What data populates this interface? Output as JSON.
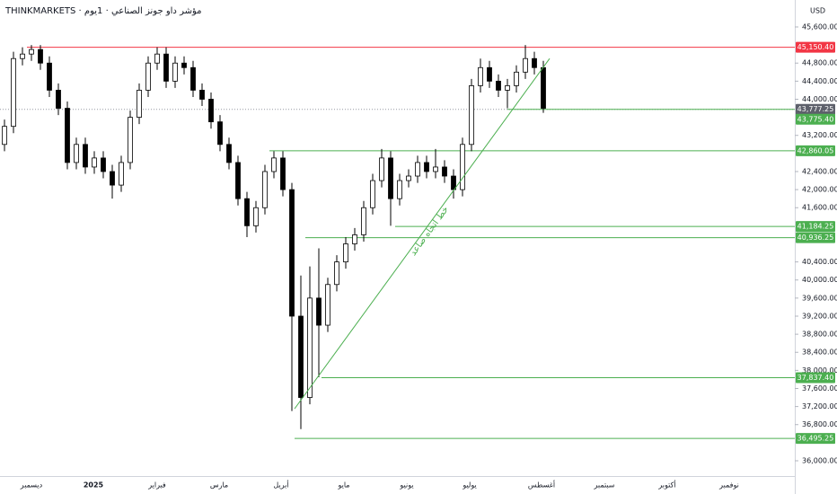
{
  "chart_data": {
    "type": "candlestick",
    "title": "THINKMARKETS · مؤشر داو جونز الصناعي · 1يوم",
    "currency": "USD",
    "x_labels": [
      "ديسمبر",
      "2025",
      "فبراير",
      "مارس",
      "أبريل",
      "مايو",
      "يونيو",
      "يوليو",
      "أغسطس",
      "سبتمبر",
      "أكتوبر",
      "نوفمبر"
    ],
    "open": [
      43000,
      43400,
      44900,
      45000,
      45100,
      44800,
      44200,
      43800,
      42600,
      43000,
      42500,
      42700,
      42400,
      42100,
      42600,
      43600,
      44200,
      44800,
      45000,
      44400,
      44800,
      44700,
      44200,
      44000,
      43500,
      43000,
      42600,
      41800,
      41200,
      41600,
      42400,
      42700,
      42000,
      39200,
      37400,
      39600,
      39000,
      39900,
      40400,
      40800,
      41000,
      41600,
      42200,
      42700,
      41800,
      42200,
      42300,
      42600,
      42400,
      42500,
      42300,
      42000,
      43000,
      44300,
      44700,
      44400,
      44200,
      44300,
      44600,
      44900,
      44700
    ],
    "high": [
      43550,
      45050,
      45150,
      45200,
      45200,
      44950,
      44350,
      43950,
      43150,
      43150,
      42850,
      42850,
      42550,
      42750,
      43750,
      44350,
      44950,
      45150,
      45150,
      44950,
      44950,
      44850,
      44350,
      44150,
      43650,
      43150,
      42750,
      41950,
      41750,
      42550,
      42850,
      42850,
      42150,
      40100,
      40300,
      40700,
      40050,
      40550,
      40950,
      41150,
      41750,
      42350,
      42900,
      42850,
      42350,
      42450,
      42750,
      42750,
      42900,
      42650,
      42450,
      43150,
      44450,
      44900,
      44850,
      44550,
      44450,
      44750,
      45200,
      45050,
      44850
    ],
    "low": [
      42850,
      43250,
      44750,
      44850,
      44650,
      44050,
      43650,
      42450,
      42450,
      42350,
      42350,
      42250,
      41800,
      41950,
      42450,
      43450,
      44050,
      44650,
      44250,
      44250,
      44550,
      44050,
      43850,
      43350,
      42850,
      42450,
      41650,
      40950,
      41050,
      41450,
      42250,
      41850,
      37100,
      36700,
      37250,
      37850,
      38850,
      39750,
      40250,
      40650,
      40850,
      41450,
      42050,
      41200,
      41650,
      42050,
      42150,
      42250,
      42250,
      42150,
      41800,
      41850,
      42850,
      44150,
      44250,
      44050,
      43800,
      44150,
      44450,
      44550,
      43700
    ],
    "close": [
      43400,
      44900,
      45000,
      45100,
      44800,
      44200,
      43800,
      42600,
      43000,
      42500,
      42700,
      42400,
      42100,
      42600,
      43600,
      44200,
      44800,
      45000,
      44400,
      44800,
      44700,
      44200,
      44000,
      43500,
      43000,
      42600,
      41800,
      41200,
      41600,
      42400,
      42700,
      42000,
      39200,
      37400,
      39600,
      39000,
      39900,
      40400,
      40800,
      41000,
      41600,
      42200,
      42700,
      41800,
      42200,
      42300,
      42600,
      42400,
      42500,
      42300,
      42000,
      43000,
      44300,
      44700,
      44400,
      44200,
      44300,
      44600,
      44900,
      44700,
      43800
    ],
    "ylim": [
      35662,
      46196
    ],
    "yticks": [
      {
        "value": 45600,
        "label": "45,600.00"
      },
      {
        "value": 44800,
        "label": "44,800.00"
      },
      {
        "value": 44400,
        "label": "44,400.00"
      },
      {
        "value": 44000,
        "label": "44,000.00"
      },
      {
        "value": 43200,
        "label": "43,200.00"
      },
      {
        "value": 42400,
        "label": "42,400.00"
      },
      {
        "value": 42000,
        "label": "42,000.00"
      },
      {
        "value": 41600,
        "label": "41,600.00"
      },
      {
        "value": 40400,
        "label": "40,400.00"
      },
      {
        "value": 40000,
        "label": "40,000.00"
      },
      {
        "value": 39600,
        "label": "39,600.00"
      },
      {
        "value": 39200,
        "label": "39,200.00"
      },
      {
        "value": 38800,
        "label": "38,800.00"
      },
      {
        "value": 38400,
        "label": "38,400.00"
      },
      {
        "value": 38000,
        "label": "38,000.00"
      },
      {
        "value": 37600,
        "label": "37,600.00"
      },
      {
        "value": 37200,
        "label": "37,200.00"
      },
      {
        "value": 36800,
        "label": "36,800.00"
      },
      {
        "value": 36000,
        "label": "36,000.00"
      }
    ],
    "levels": [
      {
        "value": 45150.4,
        "label": "45,150.40",
        "color": "#f23645"
      },
      {
        "value": 43777.25,
        "label": "43,777.25",
        "color": "#5d606b"
      },
      {
        "value": 43775.4,
        "label": "43,775.40",
        "color": "#4caf50"
      },
      {
        "value": 42860.05,
        "label": "42,860.05",
        "color": "#4caf50"
      },
      {
        "value": 41184.25,
        "label": "41,184.25",
        "color": "#4caf50"
      },
      {
        "value": 40936.25,
        "label": "40,936.25",
        "color": "#4caf50"
      },
      {
        "value": 37837.4,
        "label": "37,837.40",
        "color": "#4caf50"
      },
      {
        "value": 36495.25,
        "label": "36,495.25",
        "color": "#4caf50"
      }
    ],
    "trendline": {
      "text": "خط اتجاه صاعد",
      "from": 37150,
      "to": 44900,
      "color": "#4caf50"
    }
  }
}
